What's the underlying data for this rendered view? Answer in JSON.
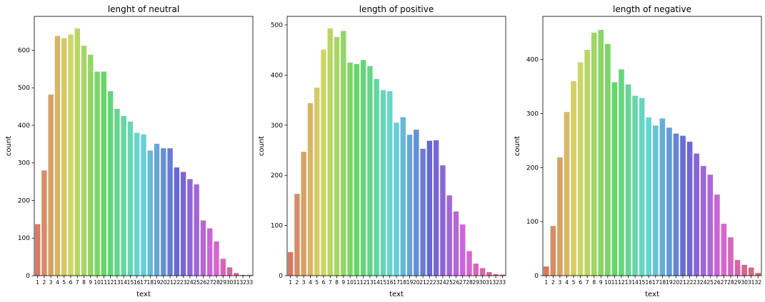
{
  "chart_data": [
    {
      "type": "bar",
      "title": "lenght of neutral",
      "xlabel": "text",
      "ylabel": "count",
      "ylim": [
        0,
        690
      ],
      "yticks": [
        0,
        100,
        200,
        300,
        400,
        500,
        600
      ],
      "categories": [
        "1",
        "2",
        "3",
        "4",
        "5",
        "6",
        "7",
        "8",
        "9",
        "10",
        "11",
        "12",
        "13",
        "14",
        "15",
        "16",
        "17",
        "18",
        "19",
        "20",
        "21",
        "22",
        "23",
        "24",
        "25",
        "26",
        "27",
        "28",
        "29",
        "30",
        "31",
        "32",
        "33"
      ],
      "values": [
        137,
        280,
        482,
        638,
        632,
        642,
        658,
        612,
        588,
        543,
        543,
        491,
        444,
        425,
        410,
        380,
        376,
        333,
        351,
        339,
        339,
        288,
        276,
        257,
        243,
        147,
        126,
        91,
        45,
        22,
        7,
        2,
        2
      ]
    },
    {
      "type": "bar",
      "title": "length of positive",
      "xlabel": "text",
      "ylabel": "count",
      "ylim": [
        0,
        517
      ],
      "yticks": [
        0,
        100,
        200,
        300,
        400,
        500
      ],
      "categories": [
        "1",
        "2",
        "3",
        "4",
        "5",
        "6",
        "7",
        "8",
        "9",
        "10",
        "11",
        "12",
        "13",
        "14",
        "15",
        "16",
        "17",
        "18",
        "19",
        "20",
        "21",
        "22",
        "23",
        "24",
        "25",
        "26",
        "27",
        "28",
        "29",
        "30",
        "31",
        "32",
        "33"
      ],
      "values": [
        47,
        163,
        247,
        344,
        375,
        451,
        493,
        476,
        488,
        425,
        422,
        430,
        418,
        392,
        370,
        368,
        305,
        316,
        281,
        291,
        253,
        269,
        270,
        220,
        160,
        128,
        102,
        49,
        24,
        15,
        7,
        3,
        2
      ]
    },
    {
      "type": "bar",
      "title": "length of negative",
      "xlabel": "text",
      "ylabel": "count",
      "ylim": [
        0,
        480
      ],
      "yticks": [
        0,
        100,
        200,
        300,
        400
      ],
      "categories": [
        "1",
        "2",
        "3",
        "4",
        "5",
        "6",
        "7",
        "8",
        "9",
        "10",
        "11",
        "12",
        "13",
        "14",
        "15",
        "16",
        "17",
        "18",
        "19",
        "20",
        "21",
        "22",
        "23",
        "24",
        "25",
        "26",
        "27",
        "28",
        "29",
        "30",
        "31",
        "32"
      ],
      "values": [
        17,
        92,
        219,
        303,
        360,
        395,
        418,
        450,
        455,
        429,
        358,
        382,
        354,
        333,
        329,
        293,
        278,
        291,
        274,
        263,
        259,
        248,
        226,
        203,
        187,
        150,
        96,
        71,
        29,
        20,
        15,
        5
      ]
    }
  ]
}
